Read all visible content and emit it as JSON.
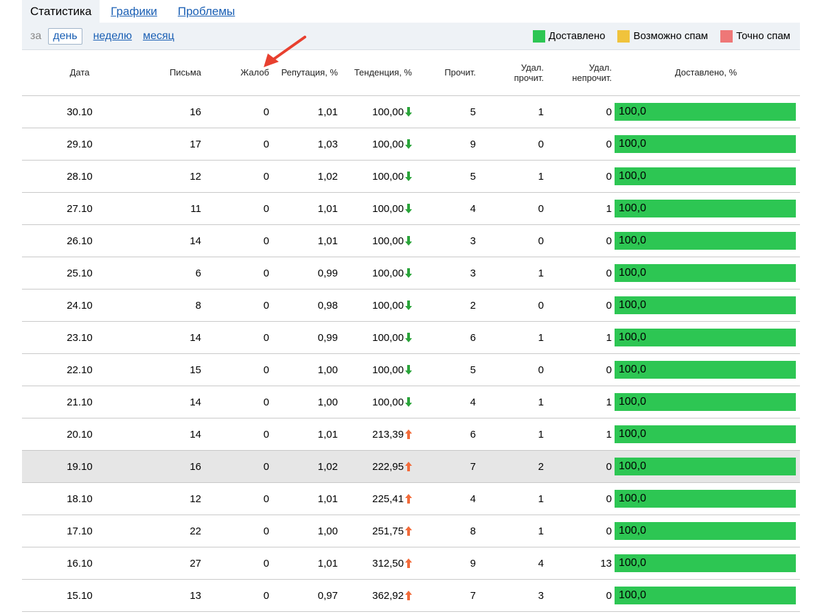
{
  "tabs": [
    {
      "label": "Статистика",
      "active": true
    },
    {
      "label": "Графики",
      "active": false
    },
    {
      "label": "Проблемы",
      "active": false
    }
  ],
  "period": {
    "prefix": "за",
    "options": [
      {
        "label": "день",
        "active": true
      },
      {
        "label": "неделю",
        "active": false
      },
      {
        "label": "месяц",
        "active": false
      }
    ]
  },
  "legend": [
    {
      "label": "Доставлено",
      "color": "#2dc653"
    },
    {
      "label": "Возможно спам",
      "color": "#f0c33c"
    },
    {
      "label": "Точно спам",
      "color": "#ee7777"
    }
  ],
  "table": {
    "headers": {
      "date": "Дата",
      "letters": "Письма",
      "complaints": "Жалоб",
      "reputation": "Репутация, %",
      "trend": "Тенденция, %",
      "read": "Прочит.",
      "deleted_read_1": "Удал.",
      "deleted_read_2": "прочит.",
      "deleted_unread_1": "Удал.",
      "deleted_unread_2": "непрочит.",
      "delivered": "Доставлено, %"
    },
    "colors": {
      "trend_down": "#2aa43a",
      "trend_up": "#f26b3a",
      "highlight_row": "#e6e6e6"
    },
    "rows": [
      {
        "date": "30.10",
        "letters": "16",
        "complaints": "0",
        "reputation": "1,01",
        "trend": "100,00",
        "trend_dir": "down",
        "read": "5",
        "deleted_read": "1",
        "deleted_unread": "0",
        "delivered": "100,0"
      },
      {
        "date": "29.10",
        "letters": "17",
        "complaints": "0",
        "reputation": "1,03",
        "trend": "100,00",
        "trend_dir": "down",
        "read": "9",
        "deleted_read": "0",
        "deleted_unread": "0",
        "delivered": "100,0"
      },
      {
        "date": "28.10",
        "letters": "12",
        "complaints": "0",
        "reputation": "1,02",
        "trend": "100,00",
        "trend_dir": "down",
        "read": "5",
        "deleted_read": "1",
        "deleted_unread": "0",
        "delivered": "100,0"
      },
      {
        "date": "27.10",
        "letters": "11",
        "complaints": "0",
        "reputation": "1,01",
        "trend": "100,00",
        "trend_dir": "down",
        "read": "4",
        "deleted_read": "0",
        "deleted_unread": "1",
        "delivered": "100,0"
      },
      {
        "date": "26.10",
        "letters": "14",
        "complaints": "0",
        "reputation": "1,01",
        "trend": "100,00",
        "trend_dir": "down",
        "read": "3",
        "deleted_read": "0",
        "deleted_unread": "0",
        "delivered": "100,0"
      },
      {
        "date": "25.10",
        "letters": "6",
        "complaints": "0",
        "reputation": "0,99",
        "trend": "100,00",
        "trend_dir": "down",
        "read": "3",
        "deleted_read": "1",
        "deleted_unread": "0",
        "delivered": "100,0"
      },
      {
        "date": "24.10",
        "letters": "8",
        "complaints": "0",
        "reputation": "0,98",
        "trend": "100,00",
        "trend_dir": "down",
        "read": "2",
        "deleted_read": "0",
        "deleted_unread": "0",
        "delivered": "100,0"
      },
      {
        "date": "23.10",
        "letters": "14",
        "complaints": "0",
        "reputation": "0,99",
        "trend": "100,00",
        "trend_dir": "down",
        "read": "6",
        "deleted_read": "1",
        "deleted_unread": "1",
        "delivered": "100,0"
      },
      {
        "date": "22.10",
        "letters": "15",
        "complaints": "0",
        "reputation": "1,00",
        "trend": "100,00",
        "trend_dir": "down",
        "read": "5",
        "deleted_read": "0",
        "deleted_unread": "0",
        "delivered": "100,0"
      },
      {
        "date": "21.10",
        "letters": "14",
        "complaints": "0",
        "reputation": "1,00",
        "trend": "100,00",
        "trend_dir": "down",
        "read": "4",
        "deleted_read": "1",
        "deleted_unread": "1",
        "delivered": "100,0"
      },
      {
        "date": "20.10",
        "letters": "14",
        "complaints": "0",
        "reputation": "1,01",
        "trend": "213,39",
        "trend_dir": "up",
        "read": "6",
        "deleted_read": "1",
        "deleted_unread": "1",
        "delivered": "100,0"
      },
      {
        "date": "19.10",
        "letters": "16",
        "complaints": "0",
        "reputation": "1,02",
        "trend": "222,95",
        "trend_dir": "up",
        "read": "7",
        "deleted_read": "2",
        "deleted_unread": "0",
        "delivered": "100,0",
        "highlighted": true
      },
      {
        "date": "18.10",
        "letters": "12",
        "complaints": "0",
        "reputation": "1,01",
        "trend": "225,41",
        "trend_dir": "up",
        "read": "4",
        "deleted_read": "1",
        "deleted_unread": "0",
        "delivered": "100,0"
      },
      {
        "date": "17.10",
        "letters": "22",
        "complaints": "0",
        "reputation": "1,00",
        "trend": "251,75",
        "trend_dir": "up",
        "read": "8",
        "deleted_read": "1",
        "deleted_unread": "0",
        "delivered": "100,0"
      },
      {
        "date": "16.10",
        "letters": "27",
        "complaints": "0",
        "reputation": "1,01",
        "trend": "312,50",
        "trend_dir": "up",
        "read": "9",
        "deleted_read": "4",
        "deleted_unread": "13",
        "delivered": "100,0"
      },
      {
        "date": "15.10",
        "letters": "13",
        "complaints": "0",
        "reputation": "0,97",
        "trend": "362,92",
        "trend_dir": "up",
        "read": "7",
        "deleted_read": "3",
        "deleted_unread": "0",
        "delivered": "100,0"
      }
    ]
  },
  "annotation": {
    "arrow_color": "#e8402f"
  }
}
